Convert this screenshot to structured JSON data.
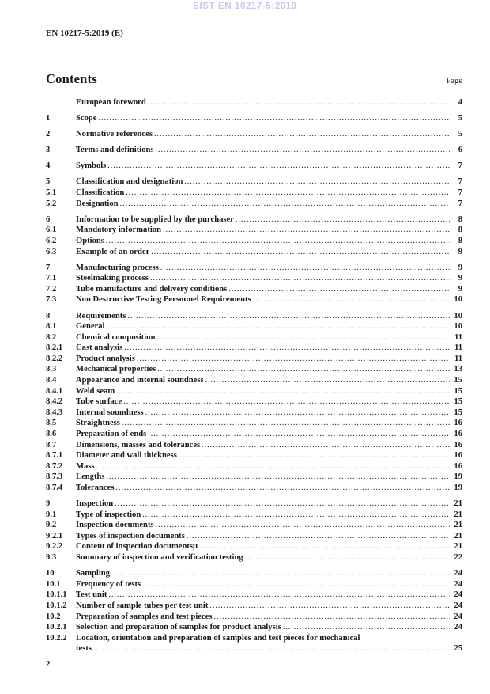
{
  "header": {
    "watermark": "SIST EN 10217-5:2019",
    "doc_reference": "EN 10217-5:2019 (E)"
  },
  "contents": {
    "title": "Contents",
    "page_label": "Page"
  },
  "colors": {
    "watermark": "#c7c8ee",
    "text": "#1a1a1a"
  },
  "toc": {
    "groups": [
      {
        "entries": [
          {
            "num": "",
            "title": "European foreword",
            "page": "4"
          }
        ]
      },
      {
        "entries": [
          {
            "num": "1",
            "title": "Scope",
            "page": "5"
          }
        ]
      },
      {
        "entries": [
          {
            "num": "2",
            "title": "Normative references",
            "page": "5"
          }
        ]
      },
      {
        "entries": [
          {
            "num": "3",
            "title": "Terms and definitions",
            "page": "6"
          }
        ]
      },
      {
        "entries": [
          {
            "num": "4",
            "title": "Symbols",
            "page": "7"
          }
        ]
      },
      {
        "entries": [
          {
            "num": "5",
            "title": "Classification and designation",
            "page": "7"
          },
          {
            "num": "5.1",
            "title": "Classification",
            "page": "7"
          },
          {
            "num": "5.2",
            "title": "Designation",
            "page": "7"
          }
        ]
      },
      {
        "entries": [
          {
            "num": "6",
            "title": "Information to be supplied by the purchaser",
            "page": "8"
          },
          {
            "num": "6.1",
            "title": "Mandatory information",
            "page": "8"
          },
          {
            "num": "6.2",
            "title": "Options",
            "page": "8"
          },
          {
            "num": "6.3",
            "title": "Example of an order",
            "page": "9"
          }
        ]
      },
      {
        "entries": [
          {
            "num": "7",
            "title": "Manufacturing process",
            "page": "9"
          },
          {
            "num": "7.1",
            "title": "Steelmaking process",
            "page": "9"
          },
          {
            "num": "7.2",
            "title": "Tube manufacture and delivery conditions",
            "page": "9"
          },
          {
            "num": "7.3",
            "title": "Non Destructive Testing Personnel Requirements",
            "page": "10"
          }
        ]
      },
      {
        "entries": [
          {
            "num": "8",
            "title": "Requirements",
            "page": "10"
          },
          {
            "num": "8.1",
            "title": "General",
            "page": "10"
          },
          {
            "num": "8.2",
            "title": "Chemical composition",
            "page": "11"
          },
          {
            "num": "8.2.1",
            "title": "Cast analysis",
            "page": "11"
          },
          {
            "num": "8.2.2",
            "title": "Product analysis",
            "page": "11"
          },
          {
            "num": "8.3",
            "title": "Mechanical properties",
            "page": "13"
          },
          {
            "num": "8.4",
            "title": "Appearance and internal soundness",
            "page": "15"
          },
          {
            "num": "8.4.1",
            "title": "Weld seam",
            "page": "15"
          },
          {
            "num": "8.4.2",
            "title": "Tube surface",
            "page": "15"
          },
          {
            "num": "8.4.3",
            "title": "Internal soundness",
            "page": "15"
          },
          {
            "num": "8.5",
            "title": "Straightness",
            "page": "16"
          },
          {
            "num": "8.6",
            "title": "Preparation of ends",
            "page": "16"
          },
          {
            "num": "8.7",
            "title": "Dimensions, masses and tolerances",
            "page": "16"
          },
          {
            "num": "8.7.1",
            "title": "Diameter and wall thickness",
            "page": "16"
          },
          {
            "num": "8.7.2",
            "title": "Mass",
            "page": "16"
          },
          {
            "num": "8.7.3",
            "title": "Lengths",
            "page": "19"
          },
          {
            "num": "8.7.4",
            "title": "Tolerances",
            "page": "19"
          }
        ]
      },
      {
        "entries": [
          {
            "num": "9",
            "title": "Inspection",
            "page": "21"
          },
          {
            "num": "9.1",
            "title": "Type of inspection",
            "page": "21"
          },
          {
            "num": "9.2",
            "title": "Inspection documents",
            "page": "21"
          },
          {
            "num": "9.2.1",
            "title": "Types of inspection documents",
            "page": "21"
          },
          {
            "num": "9.2.2",
            "title": "Content of inspection documentsµ",
            "page": "21"
          },
          {
            "num": "9.3",
            "title": "Summary of inspection and verification testing",
            "page": "22"
          }
        ]
      },
      {
        "entries": [
          {
            "num": "10",
            "title": "Sampling",
            "page": "24"
          },
          {
            "num": "10.1",
            "title": "Frequency of tests",
            "page": "24"
          },
          {
            "num": "10.1.1",
            "title": "Test unit",
            "page": "24"
          },
          {
            "num": "10.1.2",
            "title": "Number of sample tubes per test unit",
            "page": "24"
          },
          {
            "num": "10.2",
            "title": "Preparation of samples and test pieces",
            "page": "24"
          },
          {
            "num": "10.2.1",
            "title": "Selection and preparation of samples for product analysis",
            "page": "24"
          },
          {
            "num": "10.2.2",
            "title": "Location, orientation and preparation of samples and test pieces for mechanical",
            "title2": "tests",
            "page": "25"
          }
        ]
      }
    ]
  },
  "footer": {
    "page_number": "2"
  }
}
